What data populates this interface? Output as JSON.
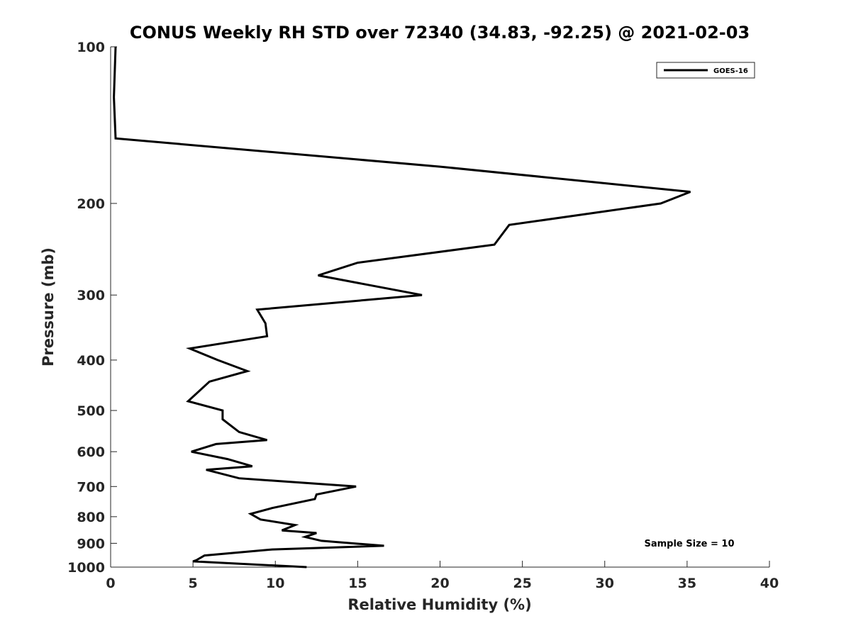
{
  "chart_data": {
    "type": "line",
    "title": "CONUS Weekly RH STD over 72340 (34.83, -92.25) @ 2021-02-03",
    "xlabel": "Relative Humidity (%)",
    "ylabel": "Pressure (mb)",
    "xlim": [
      0,
      40
    ],
    "ylim": [
      100,
      1000
    ],
    "yscale": "log",
    "y_reversed": true,
    "xticks": [
      "0",
      "5",
      "10",
      "15",
      "20",
      "25",
      "30",
      "35",
      "40"
    ],
    "yticks": [
      "100",
      "200",
      "300",
      "400",
      "500",
      "600",
      "700",
      "800",
      "900",
      "1000"
    ],
    "grid": false,
    "legend_placement": "top-right",
    "annotation": "Sample Size = 10",
    "series": [
      {
        "name": "GOES-16",
        "color": "#000000",
        "points": [
          [
            0.3,
            100
          ],
          [
            0.2,
            125
          ],
          [
            0.3,
            150
          ],
          [
            20.0,
            170
          ],
          [
            35.2,
            190
          ],
          [
            33.4,
            200
          ],
          [
            24.2,
            220
          ],
          [
            23.3,
            240
          ],
          [
            15.0,
            260
          ],
          [
            12.6,
            275
          ],
          [
            18.9,
            300
          ],
          [
            8.9,
            320
          ],
          [
            9.4,
            340
          ],
          [
            9.5,
            360
          ],
          [
            4.8,
            380
          ],
          [
            6.5,
            400
          ],
          [
            8.3,
            420
          ],
          [
            6.0,
            440
          ],
          [
            4.7,
            480
          ],
          [
            6.8,
            500
          ],
          [
            6.8,
            520
          ],
          [
            7.8,
            550
          ],
          [
            9.5,
            570
          ],
          [
            6.4,
            580
          ],
          [
            4.9,
            600
          ],
          [
            7.1,
            620
          ],
          [
            8.6,
            640
          ],
          [
            5.8,
            650
          ],
          [
            7.8,
            675
          ],
          [
            14.9,
            700
          ],
          [
            12.5,
            725
          ],
          [
            12.4,
            740
          ],
          [
            9.8,
            770
          ],
          [
            8.5,
            790
          ],
          [
            9.1,
            810
          ],
          [
            11.2,
            830
          ],
          [
            10.4,
            850
          ],
          [
            12.5,
            860
          ],
          [
            11.8,
            875
          ],
          [
            12.8,
            890
          ],
          [
            16.6,
            910
          ],
          [
            9.8,
            925
          ],
          [
            5.7,
            950
          ],
          [
            5.2,
            970
          ],
          [
            5.0,
            975
          ],
          [
            11.9,
            1000
          ]
        ]
      }
    ]
  }
}
